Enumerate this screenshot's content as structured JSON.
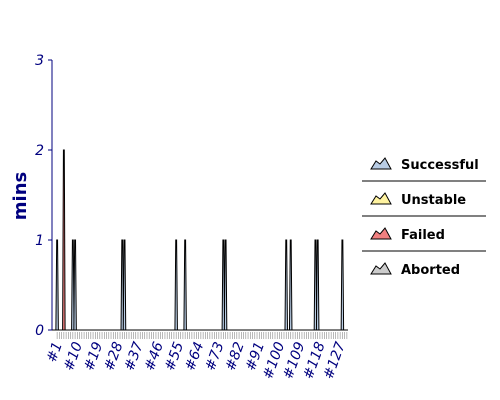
{
  "chart_data": {
    "type": "area",
    "ylabel": "mins",
    "ylim": [
      0,
      3
    ],
    "yticks": [
      0,
      1,
      2,
      3
    ],
    "x_count": 130,
    "x_tick_labels": [
      "#1",
      "#10",
      "#19",
      "#28",
      "#37",
      "#46",
      "#55",
      "#64",
      "#73",
      "#82",
      "#91",
      "#100",
      "#109",
      "#118",
      "#127"
    ],
    "x_tick_builds": [
      1,
      10,
      19,
      28,
      37,
      46,
      55,
      64,
      73,
      82,
      91,
      100,
      109,
      118,
      127
    ],
    "legend_placement": "right",
    "series": [
      {
        "name": "Successful",
        "color": "#b8cce4",
        "points": [
          [
            1,
            1
          ],
          [
            8,
            1
          ],
          [
            9,
            1
          ],
          [
            30,
            1
          ],
          [
            31,
            1
          ],
          [
            54,
            1
          ],
          [
            58,
            1
          ],
          [
            75,
            1
          ],
          [
            76,
            1
          ],
          [
            103,
            1
          ],
          [
            105,
            1
          ],
          [
            116,
            1
          ],
          [
            117,
            1
          ],
          [
            128,
            1
          ]
        ]
      },
      {
        "name": "Unstable",
        "color": "#fff3a0",
        "points": []
      },
      {
        "name": "Failed",
        "color": "#f08080",
        "points": [
          [
            4,
            2
          ]
        ]
      },
      {
        "name": "Aborted",
        "color": "#cccccc",
        "points": []
      }
    ]
  }
}
